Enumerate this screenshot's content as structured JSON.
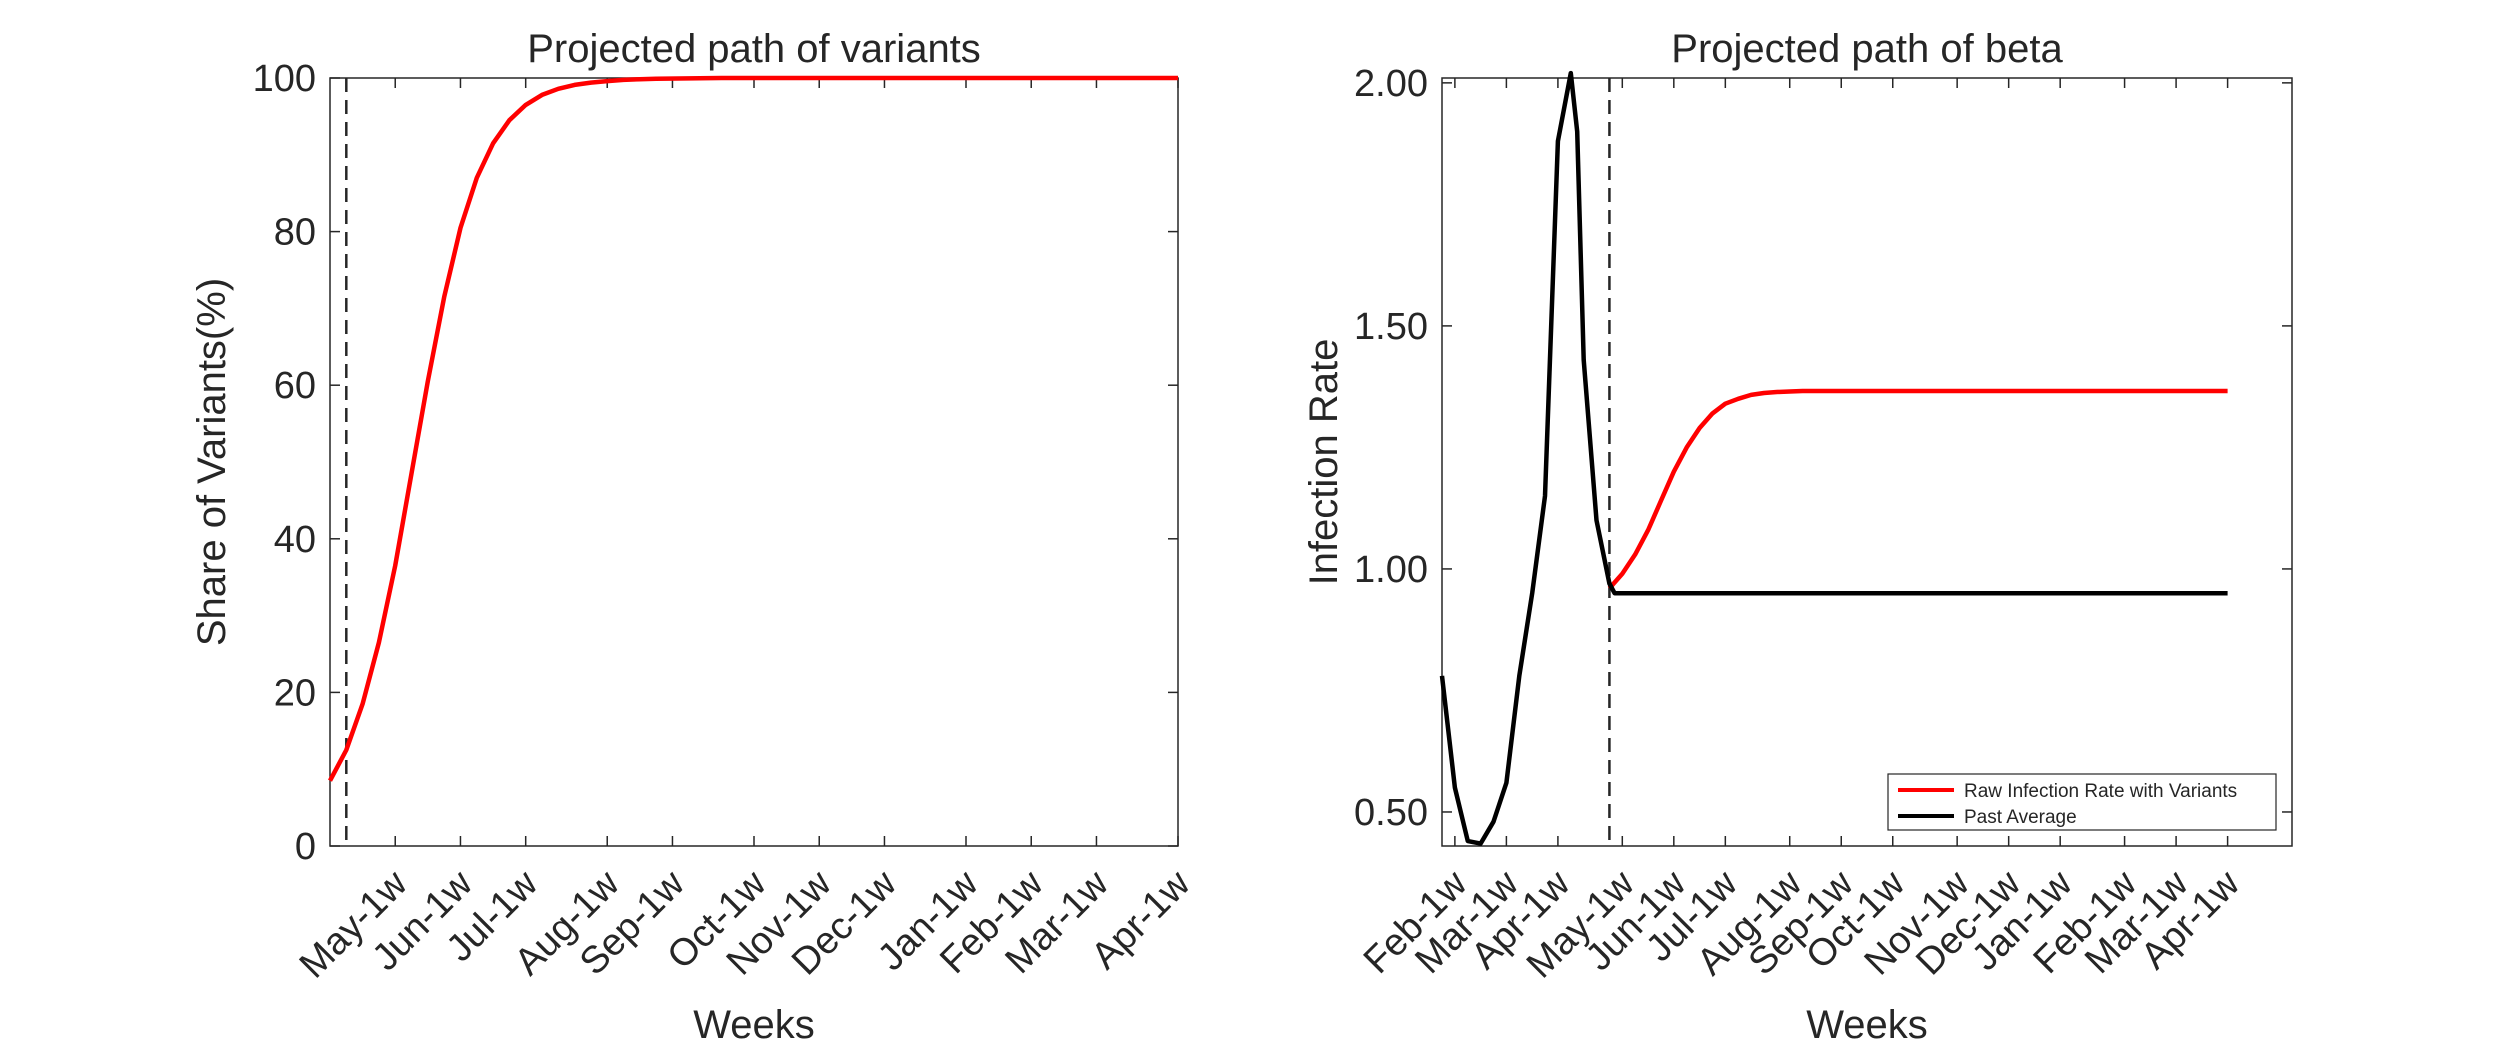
{
  "chart_data": [
    {
      "type": "line",
      "title": "Projected path of variants",
      "xlabel": "Weeks",
      "ylabel": "Share of Variants(%)",
      "ylim": [
        0,
        100
      ],
      "yticks": [
        0,
        20,
        40,
        60,
        80,
        100
      ],
      "xticks": [
        "May-1w",
        "Jun-1w",
        "Jul-1w",
        "Aug-1w",
        "Sep-1w",
        "Oct-1w",
        "Nov-1w",
        "Dec-1w",
        "Jan-1w",
        "Feb-1w",
        "Mar-1w",
        "Apr-1w"
      ],
      "week_axis": {
        "start_week": 0,
        "end_week": 52
      },
      "xtick_weeks": [
        4,
        8,
        12,
        17,
        21,
        26,
        30,
        34,
        39,
        43,
        47,
        52
      ],
      "vline_week": 1,
      "grid": false,
      "series": [
        {
          "color": "#ff0000",
          "x": [
            0,
            1,
            2,
            3,
            4,
            5,
            6,
            7,
            8,
            9,
            10,
            11,
            12,
            13,
            14,
            15,
            16,
            17,
            18,
            19,
            20,
            22,
            24,
            26,
            30,
            34,
            38,
            42,
            46,
            52
          ],
          "y": [
            8.5,
            12.5,
            18.5,
            26.5,
            36.5,
            48.5,
            60.5,
            71.5,
            80.5,
            87,
            91.5,
            94.5,
            96.5,
            97.8,
            98.6,
            99.1,
            99.4,
            99.6,
            99.75,
            99.85,
            99.9,
            99.95,
            100,
            100,
            100,
            100,
            100,
            100,
            100,
            100
          ]
        }
      ]
    },
    {
      "type": "line",
      "title": "Projected path of beta",
      "xlabel": "Weeks",
      "ylabel": "Infection Rate",
      "ylim": [
        0.43,
        2.01
      ],
      "yticks": [
        "0.50",
        "1.00",
        "1.50",
        "2.00"
      ],
      "xticks": [
        "Feb-1w",
        "Mar-1w",
        "Apr-1w",
        "May-1w",
        "Jun-1w",
        "Jul-1w",
        "Aug-1w",
        "Sep-1w",
        "Oct-1w",
        "Nov-1w",
        "Dec-1w",
        "Jan-1w",
        "Feb-1w",
        "Mar-1w",
        "Apr-1w"
      ],
      "week_axis": {
        "start_week": 0,
        "end_week": 66
      },
      "xtick_weeks": [
        1,
        5,
        9,
        14,
        18,
        22,
        27,
        31,
        35,
        40,
        44,
        48,
        53,
        57,
        61
      ],
      "vline_week": 13,
      "grid": false,
      "legend_position": "bottom-right",
      "series": [
        {
          "name": "Raw Infection Rate with Variants",
          "color": "#ff0000",
          "x": [
            13,
            14,
            15,
            16,
            17,
            18,
            19,
            20,
            21,
            22,
            23,
            24,
            25,
            26,
            27,
            28,
            30,
            32,
            36,
            40,
            50,
            61
          ],
          "y": [
            0.96,
            0.99,
            1.03,
            1.08,
            1.14,
            1.2,
            1.25,
            1.29,
            1.32,
            1.34,
            1.35,
            1.358,
            1.362,
            1.364,
            1.365,
            1.366,
            1.366,
            1.366,
            1.366,
            1.366,
            1.366,
            1.366
          ]
        },
        {
          "name": "Past Average",
          "color": "#000000",
          "x": [
            0,
            1,
            2,
            3,
            4,
            5,
            6,
            7,
            8,
            9,
            10,
            10.5,
            11,
            12,
            13,
            13.4,
            30,
            61
          ],
          "y": [
            0.78,
            0.55,
            0.44,
            0.435,
            0.48,
            0.56,
            0.78,
            0.95,
            1.15,
            1.88,
            2.02,
            1.9,
            1.43,
            1.1,
            0.97,
            0.95,
            0.95,
            0.95
          ]
        }
      ]
    }
  ]
}
